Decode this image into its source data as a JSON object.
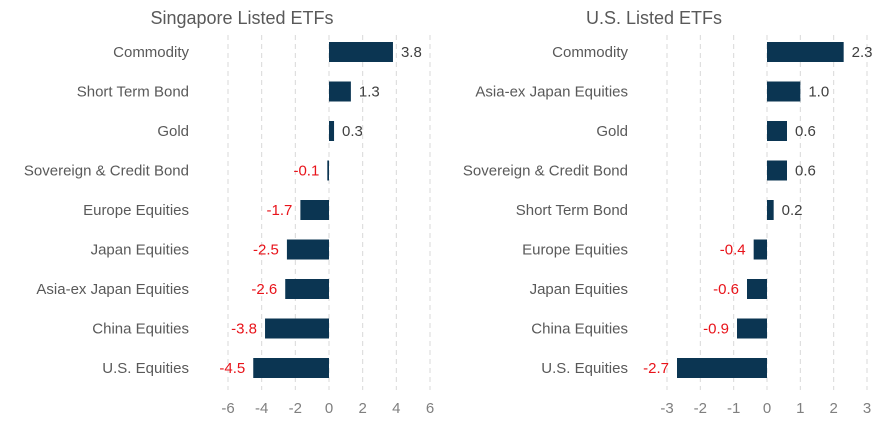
{
  "colors": {
    "bar": "#0b3552",
    "negative_label": "#e8131a",
    "positive_label": "#404040",
    "category_label": "#595959",
    "tick_label": "#7f7f7f",
    "grid": "#d9d9d9"
  },
  "chart_data": [
    {
      "type": "bar",
      "orientation": "horizontal",
      "title": "Singapore Listed ETFs",
      "categories": [
        "Commodity",
        "Short Term Bond",
        "Gold",
        "Sovereign & Credit Bond",
        "Europe Equities",
        "Japan Equities",
        "Asia-ex Japan Equities",
        "China Equities",
        "U.S. Equities"
      ],
      "values": [
        3.8,
        1.3,
        0.3,
        -0.1,
        -1.7,
        -2.5,
        -2.6,
        -3.8,
        -4.5
      ],
      "xlim": [
        -6,
        6
      ],
      "ticks": [
        -6,
        -4,
        -2,
        0,
        2,
        4,
        6
      ],
      "grid": "vertical-dashed",
      "legend": "none"
    },
    {
      "type": "bar",
      "orientation": "horizontal",
      "title": "U.S. Listed ETFs",
      "categories": [
        "Commodity",
        "Asia-ex Japan Equities",
        "Gold",
        "Sovereign & Credit Bond",
        "Short Term Bond",
        "Europe Equities",
        "Japan Equities",
        "China Equities",
        "U.S. Equities"
      ],
      "values": [
        2.3,
        1.0,
        0.6,
        0.6,
        0.2,
        -0.4,
        -0.6,
        -0.9,
        -2.7
      ],
      "xlim": [
        -3,
        3
      ],
      "ticks": [
        -3,
        -2,
        -1,
        0,
        1,
        2,
        3
      ],
      "grid": "vertical-dashed",
      "legend": "none"
    }
  ]
}
